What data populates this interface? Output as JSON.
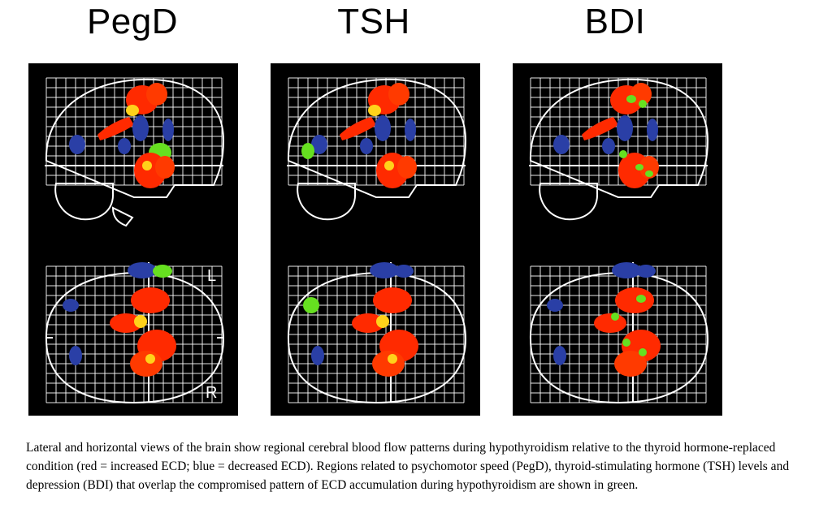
{
  "panels": [
    {
      "title": "PegD",
      "lateral_label": "",
      "top_label": "L",
      "bottom_label": "R",
      "green_regions": "single-cluster"
    },
    {
      "title": "TSH",
      "top_label": "",
      "bottom_label": "",
      "green_regions": "frontal-spot"
    },
    {
      "title": "BDI",
      "top_label": "",
      "bottom_label": "",
      "green_regions": "scattered"
    }
  ],
  "colors": {
    "increased": "#ff2a00",
    "increased_core": "#ffd21a",
    "decreased": "#2a3fa6",
    "overlap": "#66e020",
    "grid": "#ffffff",
    "panel_bg": "#000000"
  },
  "caption": "Lateral and horizontal views of the brain show regional cerebral blood flow patterns during hypothyroidism relative to the thyroid hormone-replaced condition (red = increased ECD; blue = decreased ECD). Regions related to psychomotor speed (PegD), thyroid-stimulating hormone (TSH) levels and depression (BDI) that overlap the compromised pattern of ECD accumulation during hypothyroidism are shown in green."
}
